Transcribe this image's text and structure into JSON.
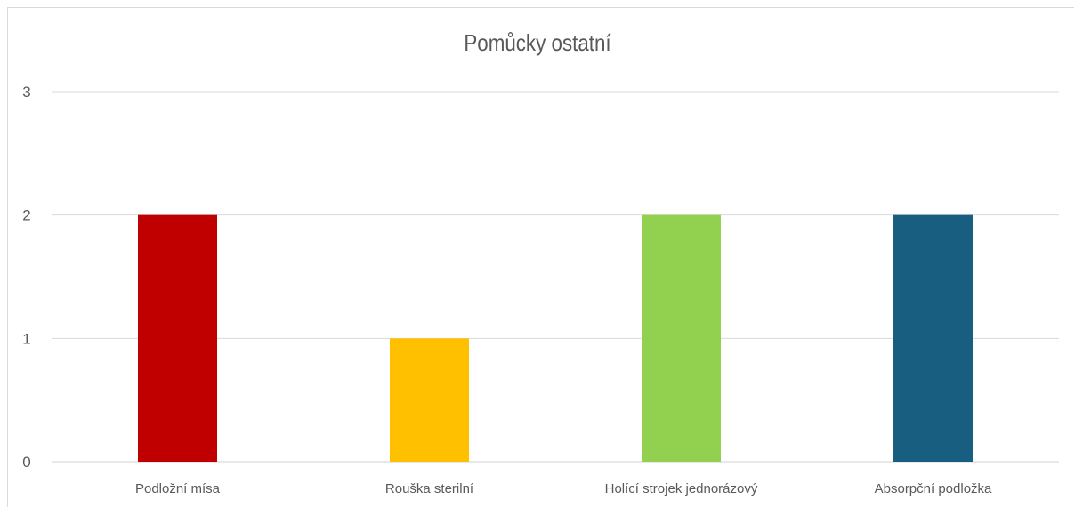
{
  "chart_data": {
    "type": "bar",
    "title": "Pomůcky ostatní",
    "xlabel": "",
    "ylabel": "",
    "categories": [
      "Podložní mísa",
      "Rouška sterilní",
      "Holící strojek jednorázový",
      "Absorpční podložka"
    ],
    "values": [
      2,
      1,
      2,
      2
    ],
    "colors": [
      "#c00000",
      "#ffc000",
      "#92d050",
      "#175e80"
    ],
    "ylim": [
      0,
      3
    ],
    "yticks": [
      "0",
      "1",
      "2",
      "3"
    ],
    "grid": true,
    "legend": "none"
  }
}
